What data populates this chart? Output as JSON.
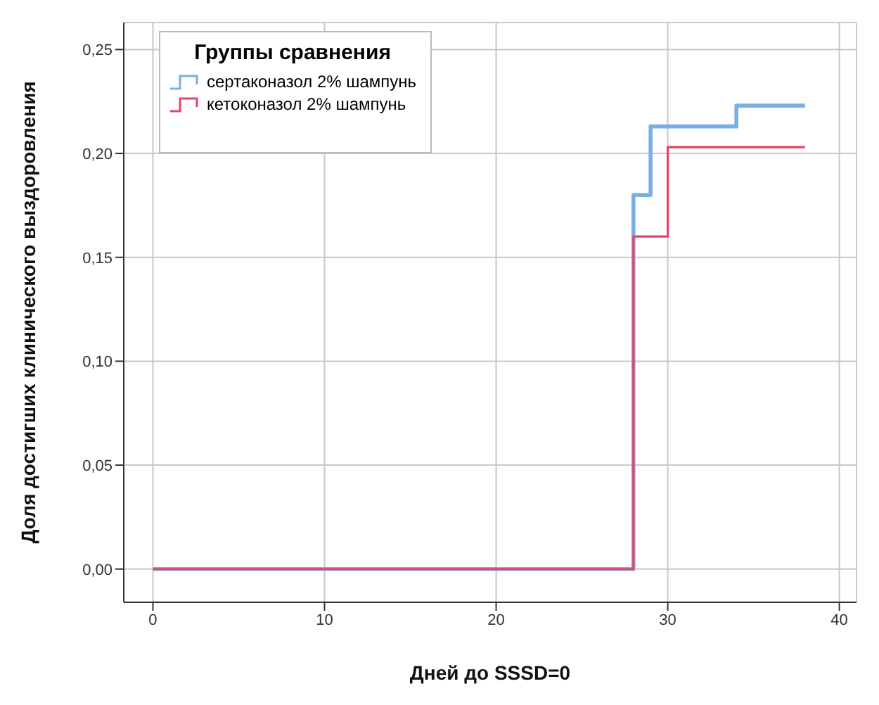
{
  "chart_data": {
    "type": "step",
    "xlabel": "Дней до  SSSD=0",
    "ylabel": "Доля достигших клинического выздоровления",
    "legend_title": "Группы сравнения",
    "legend": "top left",
    "grid": true,
    "xlim": [
      -1.7,
      41
    ],
    "xticks": [
      0,
      10,
      20,
      30,
      40
    ],
    "ylim": [
      -0.016,
      0.263
    ],
    "yticks": [
      {
        "value": 0,
        "label": "0,00"
      },
      {
        "value": 0.05,
        "label": "0,05"
      },
      {
        "value": 0.1,
        "label": "0,10"
      },
      {
        "value": 0.15,
        "label": "0,15"
      },
      {
        "value": 0.2,
        "label": "0,20"
      },
      {
        "value": 0.25,
        "label": "0,25"
      }
    ],
    "series": [
      {
        "name": "сертаконазол 2% шампунь",
        "color": "#7aaee6",
        "x": [
          0,
          28,
          29,
          34,
          38
        ],
        "values": [
          0,
          0.18,
          0.213,
          0.223,
          0.223
        ]
      },
      {
        "name": "кетоконазол 2% шампунь",
        "color": "#e8436a",
        "x": [
          0,
          28,
          30,
          38
        ],
        "values": [
          0,
          0.16,
          0.203,
          0.203
        ]
      }
    ]
  }
}
